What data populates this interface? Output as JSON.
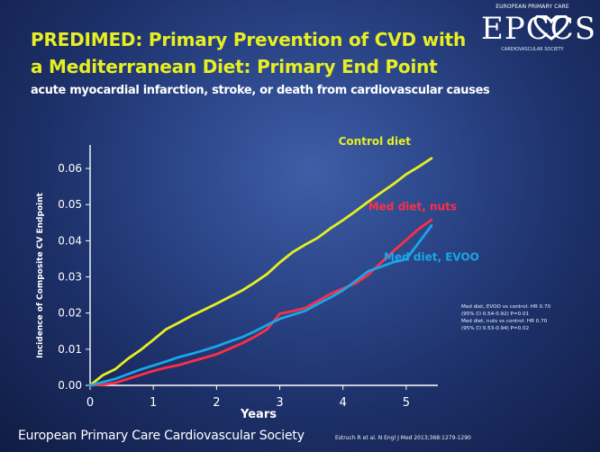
{
  "slide": {
    "title_line1": "PREDIMED: Primary Prevention of CVD with",
    "title_line2": "a Mediterranean Diet: Primary End Point",
    "subtitle": "acute myocardial infarction, stroke, or death from cardiovascular causes",
    "footer_left": "European Primary Care Cardiovascular Society",
    "footer_right": "Estruch R et al. N Engl J Med 2013;368:1279-1290",
    "colors": {
      "title": "#e7ef22",
      "background": "#223a79",
      "control": "#e6ef22",
      "med_nuts": "#ff2e45",
      "med_evoo": "#19a7e8"
    }
  },
  "logo": {
    "top_text": "EUROPEAN PRIMARY CARE",
    "mark": "EPCCS",
    "bottom_text": "CARDIOVASCULAR SOCIETY",
    "icon": "heart-logo-icon"
  },
  "chart_data": {
    "type": "line",
    "title": "",
    "xlabel": "Years",
    "ylabel": "Incidence of Composite CV Endpoint",
    "xlim": [
      0,
      5.5
    ],
    "ylim": [
      0,
      0.065
    ],
    "x_ticks": [
      {
        "value": 0,
        "label": "0"
      },
      {
        "value": 1,
        "label": "1"
      },
      {
        "value": 2,
        "label": "2"
      },
      {
        "value": 3,
        "label": "3"
      },
      {
        "value": 4,
        "label": "4"
      },
      {
        "value": 5,
        "label": "5"
      }
    ],
    "y_ticks": [
      {
        "value": 0,
        "label": "0.00"
      },
      {
        "value": 0.01,
        "label": "0.01"
      },
      {
        "value": 0.02,
        "label": "0.02"
      },
      {
        "value": 0.03,
        "label": "0.03"
      },
      {
        "value": 0.04,
        "label": "0.04"
      },
      {
        "value": 0.05,
        "label": "0.05"
      },
      {
        "value": 0.06,
        "label": "0.06"
      }
    ],
    "grid": false,
    "legend": "inline",
    "series": [
      {
        "name": "Control diet",
        "color": "#e6ef22",
        "label_text": "Control diet",
        "label_x": 4.5,
        "label_y": 0.0665,
        "x": [
          0,
          0.2,
          0.4,
          0.6,
          0.8,
          1.0,
          1.2,
          1.4,
          1.6,
          1.8,
          2.0,
          2.2,
          2.4,
          2.6,
          2.8,
          3.0,
          3.2,
          3.4,
          3.6,
          3.8,
          4.0,
          4.2,
          4.4,
          4.6,
          4.8,
          5.0,
          5.2,
          5.4
        ],
        "y": [
          0,
          0.0028,
          0.0045,
          0.0074,
          0.0098,
          0.0126,
          0.0155,
          0.0173,
          0.0192,
          0.0209,
          0.0226,
          0.0244,
          0.0262,
          0.0284,
          0.0308,
          0.034,
          0.0368,
          0.0389,
          0.0408,
          0.0434,
          0.0457,
          0.0482,
          0.0508,
          0.0533,
          0.0557,
          0.0584,
          0.0605,
          0.0628
        ]
      },
      {
        "name": "Med diet, nuts",
        "color": "#ff2e45",
        "label_text": "Med diet, nuts",
        "label_x": 5.1,
        "label_y": 0.0485,
        "x": [
          0,
          0.2,
          0.4,
          0.6,
          0.8,
          1.0,
          1.2,
          1.4,
          1.6,
          1.8,
          2.0,
          2.2,
          2.4,
          2.6,
          2.8,
          3.0,
          3.2,
          3.4,
          3.6,
          3.8,
          4.0,
          4.2,
          4.4,
          4.6,
          4.8,
          5.0,
          5.2,
          5.4
        ],
        "y": [
          0,
          0.0002,
          0.0007,
          0.0018,
          0.0029,
          0.004,
          0.0049,
          0.0056,
          0.0066,
          0.0076,
          0.0086,
          0.0101,
          0.0116,
          0.0134,
          0.0155,
          0.0198,
          0.0205,
          0.0214,
          0.0233,
          0.0253,
          0.0268,
          0.0282,
          0.0306,
          0.0339,
          0.0372,
          0.0402,
          0.0433,
          0.0458
        ]
      },
      {
        "name": "Med diet, EVOO",
        "color": "#19a7e8",
        "label_text": "Med diet, EVOO",
        "label_x": 5.4,
        "label_y": 0.0345,
        "x": [
          0,
          0.2,
          0.4,
          0.6,
          0.8,
          1.0,
          1.2,
          1.4,
          1.6,
          1.8,
          2.0,
          2.2,
          2.4,
          2.6,
          2.8,
          3.0,
          3.2,
          3.4,
          3.6,
          3.8,
          4.0,
          4.2,
          4.4,
          4.6,
          4.8,
          5.0,
          5.2,
          5.4
        ],
        "y": [
          0,
          0.0009,
          0.0018,
          0.0031,
          0.0044,
          0.0055,
          0.0066,
          0.0078,
          0.0087,
          0.0097,
          0.0108,
          0.0121,
          0.0133,
          0.0149,
          0.0167,
          0.0184,
          0.0195,
          0.0206,
          0.0225,
          0.0243,
          0.0263,
          0.0289,
          0.0316,
          0.0328,
          0.0341,
          0.0349,
          0.0395,
          0.0442
        ]
      }
    ],
    "annotation_lines": [
      "Med diet, EVOO vs control: HR 0.70",
      "(95% CI 0.54-0.92) P=0.01",
      "Med diet, nuts vs control: HR 0.70",
      "(95% CI 0.53-0.94) P=0.02"
    ]
  }
}
